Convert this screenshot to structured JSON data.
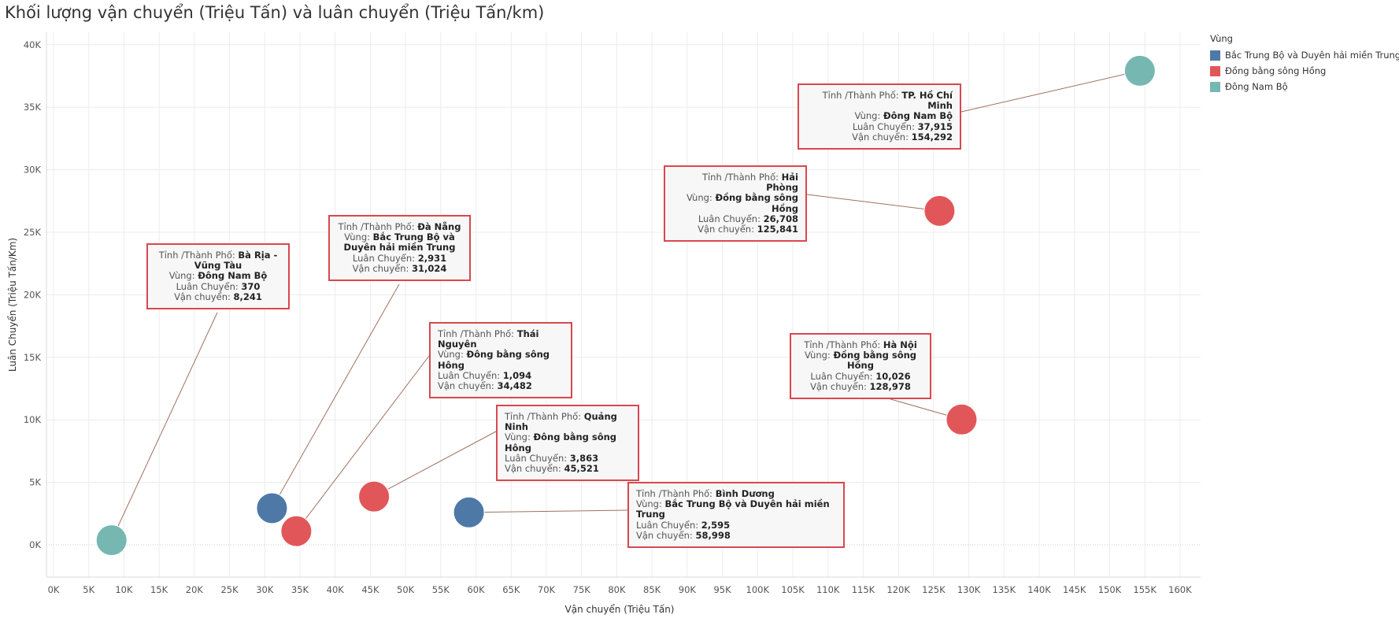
{
  "title": "Khối lượng vận chuyển (Triệu Tấn) và luân chuyển (Triệu Tấn/km)",
  "legend": {
    "title": "Vùng",
    "items": [
      {
        "label": "Bắc Trung Bộ và Duyên hải miền Trung",
        "color": "#4e79a7"
      },
      {
        "label": "Đồng bằng sông Hồng",
        "color": "#e15759"
      },
      {
        "label": "Đông Nam Bộ",
        "color": "#76b7b2"
      }
    ]
  },
  "tooltip_labels": {
    "city": "Tỉnh /Thành Phố:",
    "region": "Vùng:",
    "luan": "Luân Chuyển:",
    "van": "Vận chuyển:"
  },
  "chart_data": {
    "type": "scatter",
    "xlabel": "Vận chuyển (Triệu Tấn)",
    "ylabel": "Luân Chuyển (Triệu Tấn/Km)",
    "xlim": [
      -1000,
      164000
    ],
    "ylim": [
      -5000,
      41000
    ],
    "x_ticks": [
      0,
      5000,
      10000,
      15000,
      20000,
      25000,
      30000,
      35000,
      40000,
      45000,
      50000,
      55000,
      60000,
      65000,
      70000,
      75000,
      80000,
      85000,
      90000,
      95000,
      100000,
      105000,
      110000,
      115000,
      120000,
      125000,
      130000,
      135000,
      140000,
      145000,
      150000,
      155000,
      160000
    ],
    "x_tick_labels": [
      "0K",
      "5K",
      "10K",
      "15K",
      "20K",
      "25K",
      "30K",
      "35K",
      "40K",
      "45K",
      "50K",
      "55K",
      "60K",
      "65K",
      "70K",
      "75K",
      "80K",
      "85K",
      "90K",
      "95K",
      "100K",
      "105K",
      "110K",
      "115K",
      "120K",
      "125K",
      "130K",
      "135K",
      "140K",
      "145K",
      "150K",
      "155K",
      "160K"
    ],
    "y_ticks": [
      0,
      5000,
      10000,
      15000,
      20000,
      25000,
      30000,
      35000,
      40000
    ],
    "y_tick_labels": [
      "0K",
      "5K",
      "10K",
      "15K",
      "20K",
      "25K",
      "30K",
      "35K",
      "40K"
    ],
    "grid": true,
    "legend_position": "top-right",
    "points": [
      {
        "city": "TP. Hồ Chí Minh",
        "region": "Đông Nam Bộ",
        "luan": "37,915",
        "van": "154,292",
        "x": 154292,
        "y": 37915,
        "color": "#76b7b2"
      },
      {
        "city": "Hải Phòng",
        "region": "Đồng bằng sông Hồng",
        "luan": "26,708",
        "van": "125,841",
        "x": 125841,
        "y": 26708,
        "color": "#e15759"
      },
      {
        "city": "Hà Nội",
        "region": "Đồng bằng sông Hồng",
        "luan": "10,026",
        "van": "128,978",
        "x": 128978,
        "y": 10026,
        "color": "#e15759"
      },
      {
        "city": "Bà Rịa - Vũng Tàu",
        "region": "Đông Nam Bộ",
        "luan": "370",
        "van": "8,241",
        "x": 8241,
        "y": 370,
        "color": "#76b7b2"
      },
      {
        "city": "Đà Nẵng",
        "region": "Bắc Trung Bộ và Duyên hải miền Trung",
        "luan": "2,931",
        "van": "31,024",
        "x": 31024,
        "y": 2931,
        "color": "#4e79a7"
      },
      {
        "city": "Thái Nguyên",
        "region": "Đông bằng sông Hông",
        "luan": "1,094",
        "van": "34,482",
        "x": 34482,
        "y": 1094,
        "color": "#e15759"
      },
      {
        "city": "Quảng Ninh",
        "region": "Đông bằng sông Hông",
        "luan": "3,863",
        "van": "45,521",
        "x": 45521,
        "y": 3863,
        "color": "#e15759"
      },
      {
        "city": "Bình  Dương",
        "region": "Bắc Trung Bộ và Duyên hải miền Trung",
        "luan": "2,595",
        "van": "58,998",
        "x": 58998,
        "y": 2595,
        "color": "#4e79a7"
      }
    ]
  }
}
